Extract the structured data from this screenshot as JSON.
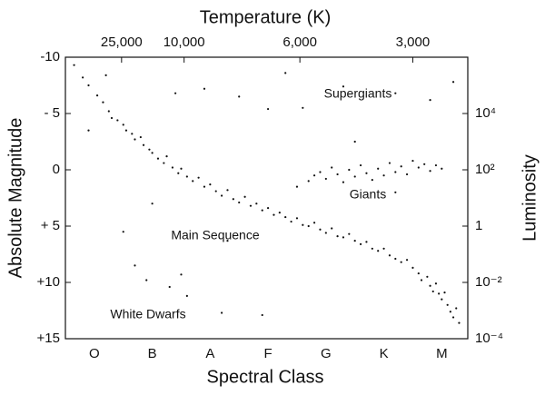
{
  "chart_data": {
    "type": "scatter",
    "title": "Temperature (K)",
    "x_label": "Spectral Class",
    "y_label": "Absolute Magnitude",
    "y2_label": "Luminosity",
    "xlim": [
      -0.5,
      6.45
    ],
    "xticks": [
      {
        "value": 0,
        "label": "O"
      },
      {
        "value": 1,
        "label": "B"
      },
      {
        "value": 2,
        "label": "A"
      },
      {
        "value": 3,
        "label": "F"
      },
      {
        "value": 4,
        "label": "G"
      },
      {
        "value": 5,
        "label": "K"
      },
      {
        "value": 6,
        "label": "M"
      }
    ],
    "x2ticks": [
      {
        "value": 0.47,
        "label": "25,000"
      },
      {
        "value": 1.55,
        "label": "10,000"
      },
      {
        "value": 3.55,
        "label": "6,000"
      },
      {
        "value": 5.5,
        "label": "3,000"
      }
    ],
    "ylim": [
      -10,
      15
    ],
    "y_inverted": true,
    "yticks": [
      {
        "value": -10,
        "label": "-10"
      },
      {
        "value": -5,
        "label": "- 5"
      },
      0,
      {
        "value": 5,
        "label": "+ 5"
      },
      {
        "value": 10,
        "label": "+10"
      },
      {
        "value": 15,
        "label": "+15"
      }
    ],
    "y2lim": [
      1000000,
      0.0001
    ],
    "y2_log": true,
    "y2ticks": [
      {
        "value": 10000,
        "label": "10⁴"
      },
      {
        "value": 100,
        "label": "10²"
      },
      1,
      {
        "value": 0.01,
        "label": "10⁻²"
      },
      {
        "value": 0.0001,
        "label": "10⁻⁴"
      }
    ],
    "annotations": [
      "Supergiants",
      "Giants",
      "Main Sequence",
      "White Dwarfs"
    ],
    "series": [
      {
        "color": "#111111",
        "x": [
          -0.35,
          -0.2,
          -0.1,
          0.05,
          0.15,
          0.25,
          0.3,
          0.4,
          0.5,
          0.55,
          0.65,
          0.7,
          0.8,
          0.85,
          0.95,
          1.0,
          1.1,
          1.2,
          1.25,
          1.35,
          1.45,
          1.5,
          1.6,
          1.7,
          1.8,
          1.9,
          2.0,
          2.1,
          2.2,
          2.3,
          2.4,
          2.5,
          2.6,
          2.7,
          2.8,
          2.9,
          3.0,
          3.1,
          3.2,
          3.3,
          3.4,
          3.5,
          3.6,
          3.7,
          3.8,
          3.9,
          4.0,
          4.1,
          4.2,
          4.3,
          4.4,
          4.5,
          4.6,
          4.7,
          4.8,
          4.9,
          5.0,
          5.1,
          5.2,
          5.3,
          5.4,
          5.5,
          5.6,
          5.65,
          5.75,
          5.8,
          5.85,
          5.9,
          5.95,
          6.0,
          6.05,
          6.1,
          6.15,
          6.2,
          6.25,
          6.3,
          3.7,
          3.8,
          3.9,
          4.0,
          4.1,
          4.2,
          4.3,
          4.4,
          4.5,
          4.6,
          4.7,
          4.8,
          4.9,
          5.0,
          5.1,
          5.2,
          5.3,
          5.4,
          5.5,
          5.6,
          5.7,
          5.8,
          5.9,
          6.0,
          1.4,
          1.9,
          2.5,
          3.0,
          3.6,
          4.3,
          5.2,
          5.8,
          6.2,
          0.2,
          3.3,
          0.9,
          1.3,
          1.6,
          2.2,
          2.9,
          0.7,
          1.5,
          -0.1,
          0.5,
          1.0,
          2.3,
          3.5,
          4.5,
          5.2
        ],
        "y": [
          -9.3,
          -8.2,
          -7.5,
          -6.6,
          -6.0,
          -5.2,
          -4.6,
          -4.4,
          -4.0,
          -3.5,
          -3.2,
          -2.7,
          -2.9,
          -2.2,
          -1.8,
          -1.5,
          -1.0,
          -0.6,
          -1.2,
          -0.2,
          0.3,
          -0.1,
          0.6,
          1.0,
          0.7,
          1.5,
          1.3,
          1.9,
          2.3,
          1.8,
          2.6,
          2.9,
          2.4,
          3.2,
          3.0,
          3.6,
          3.4,
          4.0,
          3.8,
          4.2,
          4.6,
          4.3,
          4.9,
          5.0,
          4.7,
          5.3,
          5.6,
          5.2,
          5.9,
          6.0,
          5.7,
          6.3,
          6.6,
          6.4,
          7.0,
          7.2,
          7.0,
          7.6,
          7.9,
          8.2,
          8.0,
          8.7,
          9.2,
          9.8,
          9.5,
          10.3,
          10.8,
          10.1,
          11.0,
          11.5,
          10.9,
          12.0,
          12.6,
          13.1,
          12.3,
          13.6,
          1.0,
          0.5,
          0.2,
          0.8,
          -0.2,
          0.4,
          1.1,
          0.0,
          0.6,
          -0.4,
          0.3,
          0.9,
          -0.1,
          0.5,
          -0.6,
          0.2,
          -0.3,
          0.4,
          -0.8,
          -0.2,
          -0.5,
          0.1,
          -0.4,
          -0.1,
          -6.8,
          -7.2,
          -6.5,
          -5.4,
          -5.5,
          -7.4,
          -6.8,
          -6.2,
          -7.8,
          -8.4,
          -8.6,
          9.8,
          10.4,
          11.2,
          12.7,
          12.9,
          8.5,
          9.3,
          -3.5,
          5.5,
          3.0,
          6.3,
          1.5,
          -2.5,
          2.0
        ]
      }
    ]
  }
}
